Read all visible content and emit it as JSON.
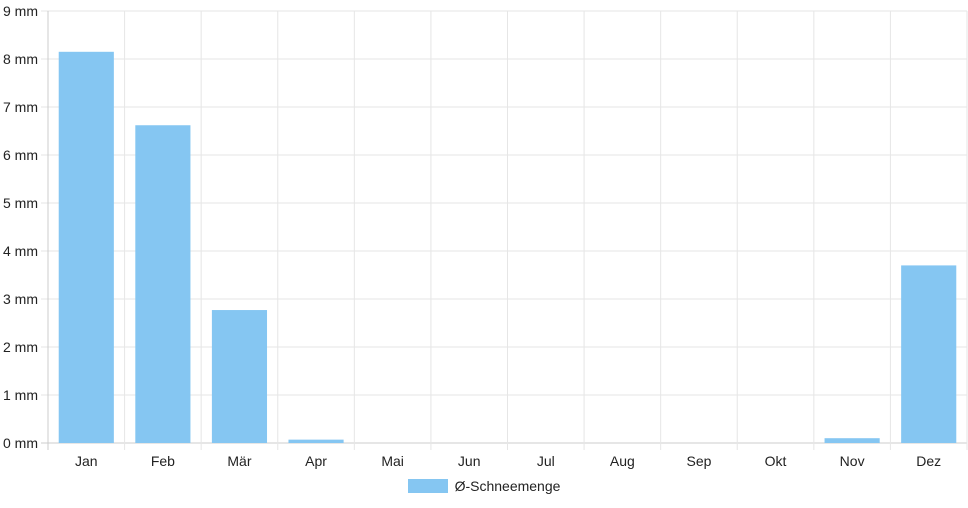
{
  "chart_data": {
    "type": "bar",
    "categories": [
      "Jan",
      "Feb",
      "Mär",
      "Apr",
      "Mai",
      "Jun",
      "Jul",
      "Aug",
      "Sep",
      "Okt",
      "Nov",
      "Dez"
    ],
    "series": [
      {
        "name": "Ø-Schneemenge",
        "values": [
          8.15,
          6.62,
          2.77,
          0.07,
          0,
          0,
          0,
          0,
          0,
          0,
          0.1,
          3.7
        ]
      }
    ],
    "y_ticks": [
      "0 mm",
      "1 mm",
      "2 mm",
      "3 mm",
      "4 mm",
      "5 mm",
      "6 mm",
      "7 mm",
      "8 mm",
      "9 mm"
    ],
    "ylim": [
      0,
      9
    ],
    "grid": true,
    "legend_position": "bottom",
    "colors": {
      "bar": "#85C6F2",
      "grid": "#e6e6e6",
      "axis": "#cccccc",
      "text": "#222222"
    }
  }
}
